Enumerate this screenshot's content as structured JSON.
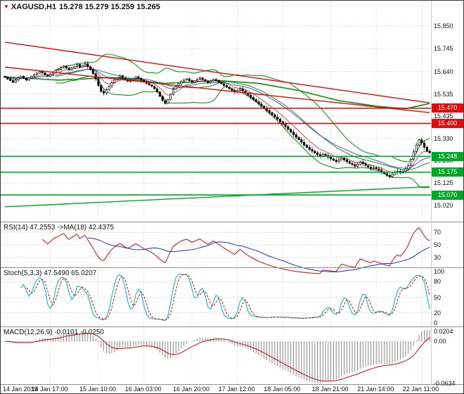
{
  "window": {
    "symbol": "XAGUSD,H1",
    "ohlc_quote": "15.278 15.279 15.259 15.265"
  },
  "main_chart": {
    "price_ticks": [
      "15.850",
      "15.745",
      "15.640",
      "15.535",
      "15.435",
      "15.330",
      "15.230",
      "15.125",
      "15.020"
    ],
    "levels": [
      {
        "price": 15.47,
        "label": "15.470",
        "color": "#e00b0b",
        "role": "resistance"
      },
      {
        "price": 15.4,
        "label": "15.400",
        "color": "#e00b0b",
        "role": "resistance"
      },
      {
        "price": 15.248,
        "label": "15.248",
        "color": "#00a728",
        "role": "support"
      },
      {
        "price": 15.175,
        "label": "15.175",
        "color": "#00a728",
        "role": "support"
      },
      {
        "price": 15.07,
        "label": "15.070",
        "color": "#00a728",
        "role": "support"
      }
    ],
    "trendlines": [
      {
        "bar1": 0,
        "price1": 15.775,
        "bar2": 159,
        "price2": 15.495,
        "color": "#e00b0b"
      },
      {
        "bar1": 0,
        "price1": 15.66,
        "bar2": 159,
        "price2": 15.45,
        "color": "#e00b0b"
      },
      {
        "bar1": 0,
        "price1": 15.015,
        "bar2": 159,
        "price2": 15.108,
        "color": "#00a728"
      }
    ]
  },
  "time_axis": {
    "labels": [
      {
        "text": "14 Jan 2019",
        "bar": 0
      },
      {
        "text": "14 Jan 17:00",
        "bar": 17
      },
      {
        "text": "15 Jan 10:00",
        "bar": 35
      },
      {
        "text": "16 Jan 03:00",
        "bar": 52
      },
      {
        "text": "16 Jan 20:00",
        "bar": 70
      },
      {
        "text": "17 Jan 12:00",
        "bar": 87
      },
      {
        "text": "18 Jan 05:00",
        "bar": 104
      },
      {
        "text": "18 Jan 21:00",
        "bar": 122
      },
      {
        "text": "21 Jan 14:00",
        "bar": 139
      },
      {
        "text": "22 Jan 11:00",
        "bar": 156
      }
    ]
  },
  "rsi_panel": {
    "label": "RSI(14) 47.2553  ->MA(18) 42.4375",
    "ticks": [
      {
        "v": 70,
        "t": "70"
      },
      {
        "v": 50,
        "t": "50"
      },
      {
        "v": 30,
        "t": "30"
      }
    ],
    "grid_levels": [
      70,
      50,
      30
    ],
    "line_color": "#cf0a0a",
    "ma_color": "#2233cc"
  },
  "stoch_panel": {
    "label": "Stoch(5,3,3) 47.5490 65.0207",
    "ticks": [
      {
        "v": 100,
        "t": "100"
      },
      {
        "v": 80,
        "t": "80"
      },
      {
        "v": 50,
        "t": "50"
      },
      {
        "v": 20,
        "t": "20"
      },
      {
        "v": 0,
        "t": "0"
      }
    ],
    "grid_levels": [
      80,
      50,
      20
    ],
    "k_color": "#00b2b2",
    "d_color": "#cf0a0a"
  },
  "macd_panel": {
    "label": "MACD(12,26,9) -0.0101 -0.0250",
    "ticks": [
      {
        "v": 0.0204,
        "t": "0.0204"
      },
      {
        "v": 0,
        "t": "0.00"
      },
      {
        "v": -0.0634,
        "t": "-0.0634"
      }
    ],
    "grid_levels": [
      0
    ],
    "hist_color": "#7a7a7a",
    "signal_color": "#cf0a0a"
  },
  "chart_data": {
    "type": "candlestick",
    "symbol": "XAGUSD",
    "timeframe": "H1",
    "title": "XAGUSD,H1 15.278 15.279 15.259 15.265",
    "last_quote": {
      "open": 15.278,
      "high": 15.279,
      "low": 15.259,
      "close": 15.265
    },
    "y_axis": {
      "min": 14.95,
      "max": 15.96
    },
    "x_axis": {
      "start": "14 Jan 2019",
      "end": "22 Jan 11:00",
      "bars": 160
    },
    "closes": [
      15.612,
      15.605,
      15.598,
      15.59,
      15.6,
      15.61,
      15.618,
      15.608,
      15.6,
      15.61,
      15.618,
      15.625,
      15.632,
      15.64,
      15.633,
      15.625,
      15.618,
      15.627,
      15.636,
      15.645,
      15.65,
      15.658,
      15.664,
      15.655,
      15.648,
      15.656,
      15.664,
      15.672,
      15.66,
      15.668,
      15.675,
      15.662,
      15.648,
      15.63,
      15.605,
      15.575,
      15.548,
      15.54,
      15.555,
      15.572,
      15.588,
      15.6,
      15.612,
      15.62,
      15.61,
      15.6,
      15.594,
      15.6,
      15.608,
      15.615,
      15.608,
      15.6,
      15.592,
      15.585,
      15.578,
      15.57,
      15.56,
      15.545,
      15.525,
      15.505,
      15.492,
      15.51,
      15.535,
      15.558,
      15.572,
      15.583,
      15.593,
      15.6,
      15.606,
      15.598,
      15.59,
      15.597,
      15.604,
      15.61,
      15.602,
      15.595,
      15.588,
      15.596,
      15.603,
      15.598,
      15.59,
      15.583,
      15.575,
      15.568,
      15.56,
      15.552,
      15.545,
      15.552,
      15.56,
      15.55,
      15.54,
      15.53,
      15.52,
      15.51,
      15.5,
      15.49,
      15.48,
      15.47,
      15.46,
      15.45,
      15.44,
      15.43,
      15.42,
      15.408,
      15.396,
      15.385,
      15.373,
      15.36,
      15.348,
      15.336,
      15.325,
      15.313,
      15.3,
      15.29,
      15.28,
      15.272,
      15.264,
      15.256,
      15.25,
      15.258,
      15.252,
      15.244,
      15.236,
      15.23,
      15.224,
      15.232,
      15.24,
      15.232,
      15.224,
      15.216,
      15.21,
      15.202,
      15.212,
      15.222,
      15.214,
      15.206,
      15.198,
      15.192,
      15.196,
      15.19,
      15.185,
      15.175,
      15.168,
      15.16,
      15.155,
      15.165,
      15.175,
      15.18,
      15.172,
      15.18,
      15.19,
      15.205,
      15.235,
      15.27,
      15.3,
      15.325,
      15.31,
      15.29,
      15.272,
      15.265
    ],
    "overlays": {
      "bollinger": {
        "period": 20,
        "deviation": 2,
        "color": "#169616"
      },
      "ema_fast": {
        "period": 8,
        "color": "#d42222"
      },
      "ema_slow": {
        "period": 21,
        "color": "#2233cc"
      },
      "ma_curve": {
        "color": "#169616",
        "points": [
          [
            0,
            15.615
          ],
          [
            20,
            15.6
          ],
          [
            40,
            15.612
          ],
          [
            60,
            15.585
          ],
          [
            80,
            15.598
          ],
          [
            95,
            15.585
          ],
          [
            110,
            15.552
          ],
          [
            125,
            15.505
          ],
          [
            140,
            15.478
          ],
          [
            150,
            15.468
          ],
          [
            159,
            15.492
          ]
        ]
      },
      "support_levels": [
        15.248,
        15.175,
        15.07
      ],
      "resistance_levels": [
        15.47,
        15.4
      ]
    },
    "indicators": {
      "rsi": {
        "period": 14,
        "value": 47.2553,
        "ma_period": 18,
        "ma_value": 42.4375,
        "range": [
          15,
          85
        ]
      },
      "stochastic": {
        "k_period": 5,
        "d_period": 3,
        "slowing": 3,
        "k_value": 47.549,
        "d_value": 65.0207,
        "range": [
          -5,
          105
        ]
      },
      "macd": {
        "fast_ema": 12,
        "slow_ema": 26,
        "signal_period": 9,
        "value": -0.0101,
        "signal_value": -0.025,
        "scale_max": 0.0204,
        "scale_min": -0.0634
      }
    }
  }
}
